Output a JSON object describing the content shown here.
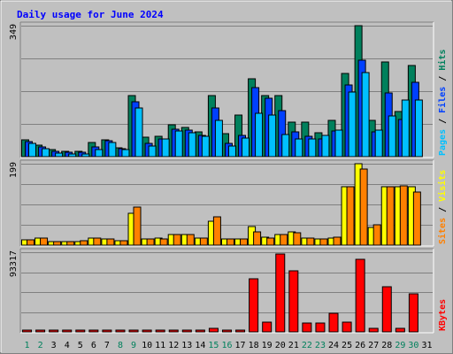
{
  "chart_data": {
    "type": "bar",
    "title": "Daily usage for June 2024",
    "categories": [
      "1",
      "2",
      "3",
      "4",
      "5",
      "6",
      "7",
      "8",
      "9",
      "10",
      "11",
      "12",
      "13",
      "14",
      "15",
      "16",
      "17",
      "18",
      "19",
      "20",
      "21",
      "22",
      "23",
      "24",
      "25",
      "26",
      "27",
      "28",
      "29",
      "30",
      "31"
    ],
    "weekend_days": [
      "1",
      "2",
      "8",
      "9",
      "15",
      "16",
      "22",
      "23",
      "29",
      "30"
    ],
    "colors": {
      "hits": "#00805c",
      "files": "#0040ff",
      "pages": "#00e0ff",
      "visits": "#ffff00",
      "sites": "#ff8000",
      "kbytes": "#ff0000",
      "title": "#0000ff",
      "weekday_label": "#000000",
      "weekend_label": "#00805c",
      "background": "#c0c0c0",
      "grid": "#808080"
    },
    "panels": [
      {
        "id": "top",
        "max_label": "349",
        "ymax": 349,
        "legend": [
          {
            "text": "Pages",
            "color": "#00c0ff"
          },
          {
            "text": " / ",
            "color": "#000000"
          },
          {
            "text": "Files",
            "color": "#0040ff"
          },
          {
            "text": " / ",
            "color": "#000000"
          },
          {
            "text": "Hits",
            "color": "#00805c"
          }
        ],
        "series": [
          {
            "name": "Hits",
            "color": "#00805c",
            "values": [
              44,
              30,
              18,
              14,
              14,
              37,
              45,
              23,
              163,
              52,
              55,
              84,
              78,
              66,
              163,
              61,
              110,
              208,
              163,
              163,
              92,
              92,
              64,
              97,
              221,
              349,
              97,
              252,
              121,
              243,
              0
            ]
          },
          {
            "name": "Files",
            "color": "#0040ff",
            "values": [
              40,
              26,
              13,
              11,
              11,
              27,
              43,
              21,
              146,
              36,
              48,
              72,
              70,
              56,
              129,
              35,
              56,
              183,
              156,
              123,
              67,
              55,
              47,
              69,
              190,
              258,
              67,
              170,
              100,
              198,
              0
            ]
          },
          {
            "name": "Pages",
            "color": "#00c0ff",
            "values": [
              36,
              21,
              9,
              8,
              8,
              20,
              37,
              18,
              130,
              29,
              48,
              69,
              64,
              55,
              96,
              28,
              49,
              116,
              112,
              60,
              47,
              48,
              56,
              71,
              171,
              225,
              70,
              108,
              151,
              150,
              0
            ]
          }
        ]
      },
      {
        "id": "middle",
        "max_label": "199",
        "ymax": 199,
        "legend": [
          {
            "text": "Sites",
            "color": "#ff8000"
          },
          {
            "text": " / ",
            "color": "#000000"
          },
          {
            "text": "Visits",
            "color": "#ffff00"
          }
        ],
        "series": [
          {
            "name": "Visits",
            "color": "#ffff00",
            "values": [
              13,
              18,
              8,
              8,
              8,
              17,
              15,
              10,
              78,
              15,
              17,
              27,
              27,
              17,
              58,
              15,
              15,
              45,
              20,
              27,
              32,
              18,
              15,
              18,
              143,
              199,
              43,
              143,
              143,
              143,
              0
            ]
          },
          {
            "name": "Sites",
            "color": "#ff8000",
            "values": [
              13,
              18,
              8,
              8,
              10,
              17,
              15,
              10,
              93,
              15,
              15,
              27,
              27,
              17,
              70,
              15,
              15,
              33,
              18,
              25,
              30,
              18,
              15,
              20,
              143,
              186,
              50,
              143,
              145,
              130,
              0
            ]
          }
        ]
      },
      {
        "id": "bottom",
        "max_label": "93317",
        "ymax": 93317,
        "legend": [
          {
            "text": "KBytes",
            "color": "#ff0000"
          }
        ],
        "series": [
          {
            "name": "KBytes",
            "color": "#ff0000",
            "values": [
              600,
              600,
              600,
              600,
              600,
              600,
              600,
              600,
              600,
              600,
              600,
              600,
              600,
              600,
              4500,
              600,
              600,
              62000,
              11800,
              91600,
              71900,
              10600,
              10000,
              22200,
              11500,
              85000,
              4600,
              52600,
              4600,
              45100,
              0
            ]
          }
        ]
      }
    ]
  }
}
